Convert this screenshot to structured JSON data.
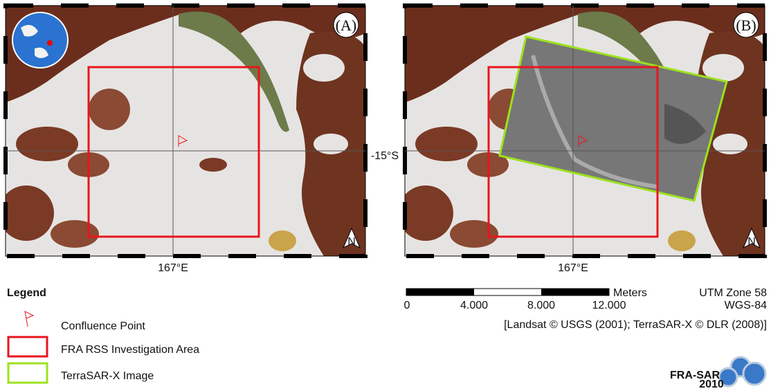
{
  "panels": [
    {
      "label": "(A)"
    },
    {
      "label": "(B)"
    }
  ],
  "graticule": {
    "latitude": "-15°S",
    "longitude": "167°E"
  },
  "north_arrow": "N",
  "legend": {
    "title": "Legend",
    "items": [
      "Confluence Point",
      "FRA RSS Investigation Area",
      "TerraSAR-X Image"
    ]
  },
  "scale_bar": {
    "unit": "Meters",
    "labels": [
      "0",
      "4.000",
      "8.000",
      "12.000"
    ]
  },
  "projection": {
    "zone": "UTM Zone 58",
    "datum": "WGS-84"
  },
  "attribution": "[Landsat © USGS (2001); TerraSAR-X © DLR (2008)]",
  "logo": {
    "name": "FRA-SAR",
    "year": "2010"
  }
}
